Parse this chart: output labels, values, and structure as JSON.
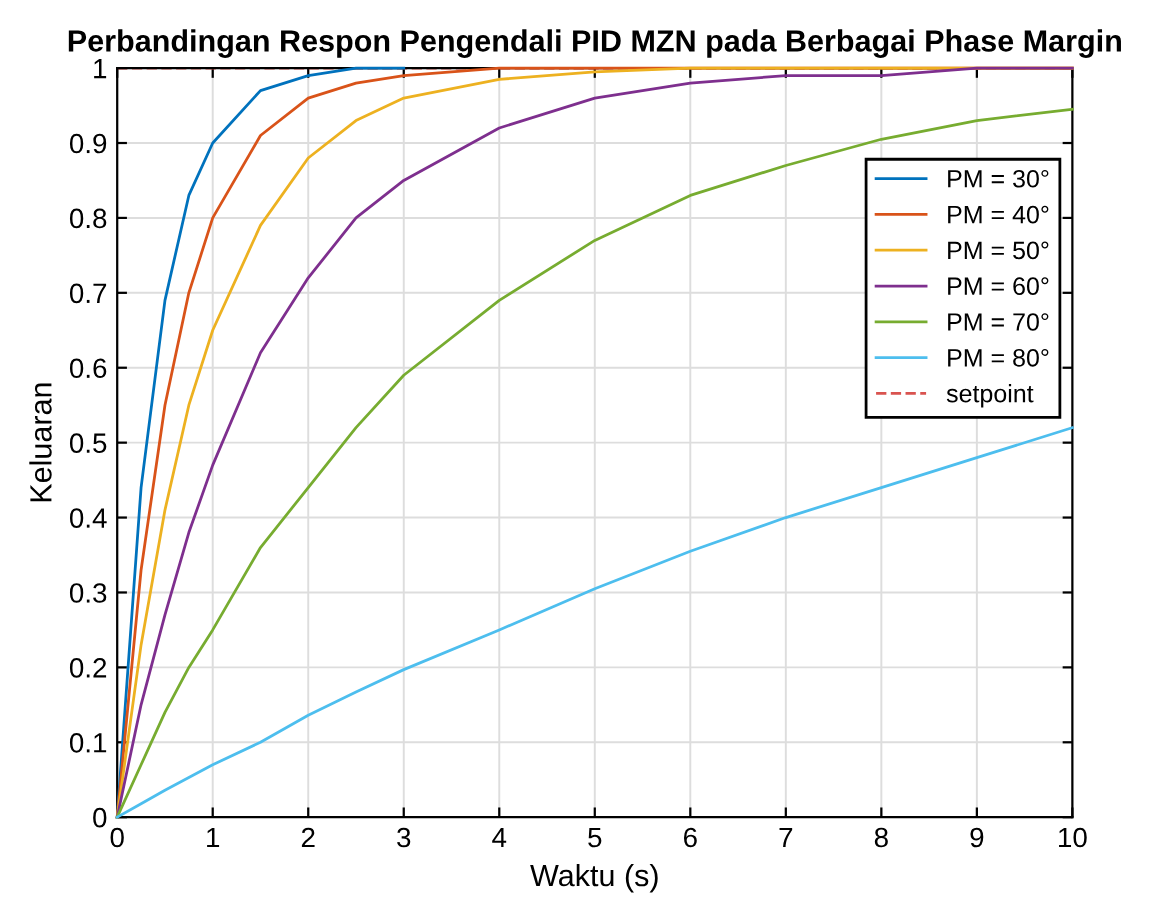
{
  "chart_data": {
    "type": "line",
    "title": "Perbandingan Respon Pengendali PID MZN pada Berbagai Phase Margin",
    "xlabel": "Waktu (s)",
    "ylabel": "Keluaran",
    "x": [
      0,
      0.25,
      0.5,
      0.75,
      1,
      1.5,
      2,
      2.5,
      3,
      4,
      5,
      6,
      7,
      8,
      9,
      10
    ],
    "series": [
      {
        "name": "PM = 30°",
        "color": "#0072bd",
        "values": [
          0,
          0.44,
          0.69,
          0.83,
          0.9,
          0.97,
          0.99,
          1,
          1,
          null,
          null,
          null,
          null,
          null,
          null,
          null
        ]
      },
      {
        "name": "PM = 40°",
        "color": "#d95319",
        "values": [
          0,
          0.33,
          0.55,
          0.7,
          0.8,
          0.91,
          0.96,
          0.98,
          0.99,
          1,
          1,
          1,
          1,
          1,
          1,
          1
        ]
      },
      {
        "name": "PM = 50°",
        "color": "#edb120",
        "values": [
          0,
          0.23,
          0.41,
          0.55,
          0.65,
          0.79,
          0.88,
          0.93,
          0.96,
          0.985,
          0.995,
          1,
          1,
          1,
          1,
          1
        ]
      },
      {
        "name": "PM = 60°",
        "color": "#7e2f8e",
        "values": [
          0,
          0.15,
          0.27,
          0.38,
          0.47,
          0.62,
          0.72,
          0.8,
          0.85,
          0.92,
          0.96,
          0.98,
          0.99,
          0.99,
          1,
          1
        ]
      },
      {
        "name": "PM = 70°",
        "color": "#77ac30",
        "values": [
          0,
          0.07,
          0.14,
          0.2,
          0.25,
          0.36,
          0.44,
          0.52,
          0.59,
          0.69,
          0.77,
          0.83,
          0.87,
          0.905,
          0.93,
          0.945
        ]
      },
      {
        "name": "PM = 80°",
        "color": "#4dbeee",
        "values": [
          0,
          0.018,
          0.036,
          0.053,
          0.07,
          0.1,
          0.136,
          0.167,
          0.197,
          0.25,
          0.305,
          0.355,
          0.4,
          0.44,
          0.48,
          0.52
        ]
      }
    ],
    "ref_lines": [
      {
        "axis": "y",
        "value": 1,
        "label": "setpoint",
        "color": "#d9534f",
        "line_style": "dashed"
      }
    ],
    "xlim": [
      0,
      10
    ],
    "xticks": [
      0,
      1,
      2,
      3,
      4,
      5,
      6,
      7,
      8,
      9,
      10
    ],
    "ylim": [
      0,
      1
    ],
    "yticks": [
      0,
      0.1,
      0.2,
      0.3,
      0.4,
      0.5,
      0.6,
      0.7,
      0.8,
      0.9,
      1
    ],
    "grid": true,
    "legend": "top right",
    "marker": "none",
    "line_style": "solid"
  }
}
